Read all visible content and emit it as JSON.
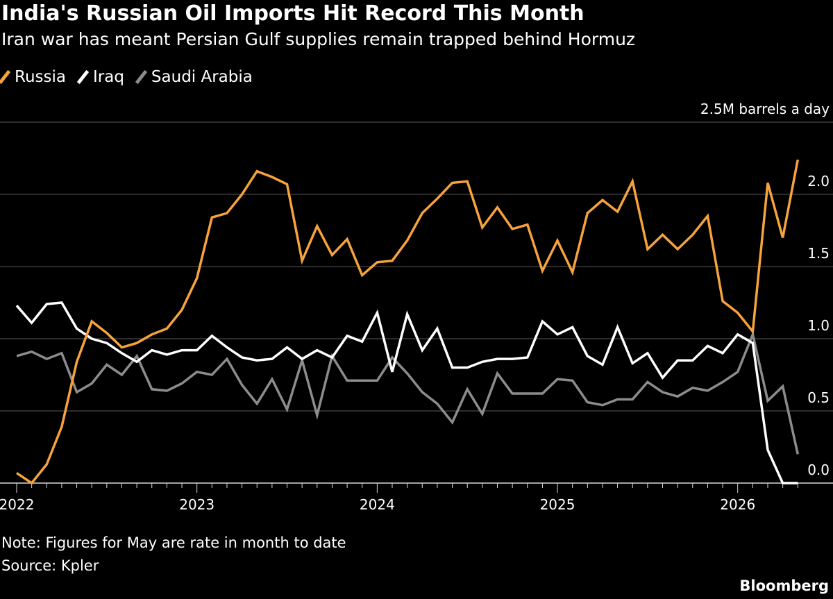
{
  "chart_data": {
    "type": "line",
    "title": "India's Russian Oil Imports Hit Record This Month",
    "subtitle": "Iran war has meant Persian Gulf supplies remain trapped behind Hormuz",
    "ylabel": "2.5M barrels a day",
    "ylim": [
      0,
      2.5
    ],
    "yticks": [
      "0.0",
      "0.5",
      "1.0",
      "1.5",
      "2.0"
    ],
    "xticks": [
      "2022",
      "2023",
      "2024",
      "2025",
      "2026"
    ],
    "x_start": "2022-01",
    "x_end": "2026-05",
    "grid": true,
    "legend_position": "top-left",
    "series": [
      {
        "name": "Russia",
        "color": "#f7a33c",
        "values": [
          0.07,
          0.0,
          0.13,
          0.39,
          0.84,
          1.12,
          1.04,
          0.94,
          0.97,
          1.03,
          1.07,
          1.2,
          1.42,
          1.84,
          1.87,
          2.0,
          2.16,
          2.12,
          2.07,
          1.54,
          1.78,
          1.58,
          1.69,
          1.44,
          1.53,
          1.54,
          1.68,
          1.87,
          1.97,
          2.08,
          2.09,
          1.77,
          1.91,
          1.76,
          1.79,
          1.47,
          1.68,
          1.46,
          1.87,
          1.96,
          1.88,
          2.09,
          1.62,
          1.72,
          1.62,
          1.72,
          1.85,
          1.26,
          1.18,
          1.05,
          2.08,
          1.7,
          2.24
        ]
      },
      {
        "name": "Iraq",
        "color": "#ffffff",
        "values": [
          1.23,
          1.11,
          1.24,
          1.25,
          1.07,
          1.0,
          0.97,
          0.9,
          0.84,
          0.92,
          0.89,
          0.92,
          0.92,
          1.02,
          0.94,
          0.87,
          0.85,
          0.86,
          0.94,
          0.86,
          0.92,
          0.87,
          1.02,
          0.98,
          1.18,
          0.77,
          1.17,
          0.92,
          1.07,
          0.8,
          0.8,
          0.84,
          0.86,
          0.86,
          0.87,
          1.12,
          1.03,
          1.08,
          0.88,
          0.82,
          1.08,
          0.83,
          0.9,
          0.73,
          0.85,
          0.85,
          0.95,
          0.9,
          1.03,
          0.97,
          0.23,
          0.0,
          0.0
        ]
      },
      {
        "name": "Saudi Arabia",
        "color": "#8c8c8c",
        "values": [
          0.88,
          0.91,
          0.86,
          0.9,
          0.63,
          0.69,
          0.82,
          0.75,
          0.88,
          0.65,
          0.64,
          0.69,
          0.77,
          0.75,
          0.86,
          0.68,
          0.55,
          0.72,
          0.51,
          0.85,
          0.47,
          0.88,
          0.71,
          0.71,
          0.71,
          0.87,
          0.76,
          0.63,
          0.55,
          0.42,
          0.65,
          0.48,
          0.76,
          0.62,
          0.62,
          0.62,
          0.72,
          0.71,
          0.56,
          0.54,
          0.58,
          0.58,
          0.7,
          0.63,
          0.6,
          0.66,
          0.64,
          0.7,
          0.77,
          1.03,
          0.57,
          0.67,
          0.2
        ]
      }
    ]
  },
  "note": "Note: Figures for May are rate in month to date",
  "source": "Source: Kpler",
  "brand": "Bloomberg"
}
